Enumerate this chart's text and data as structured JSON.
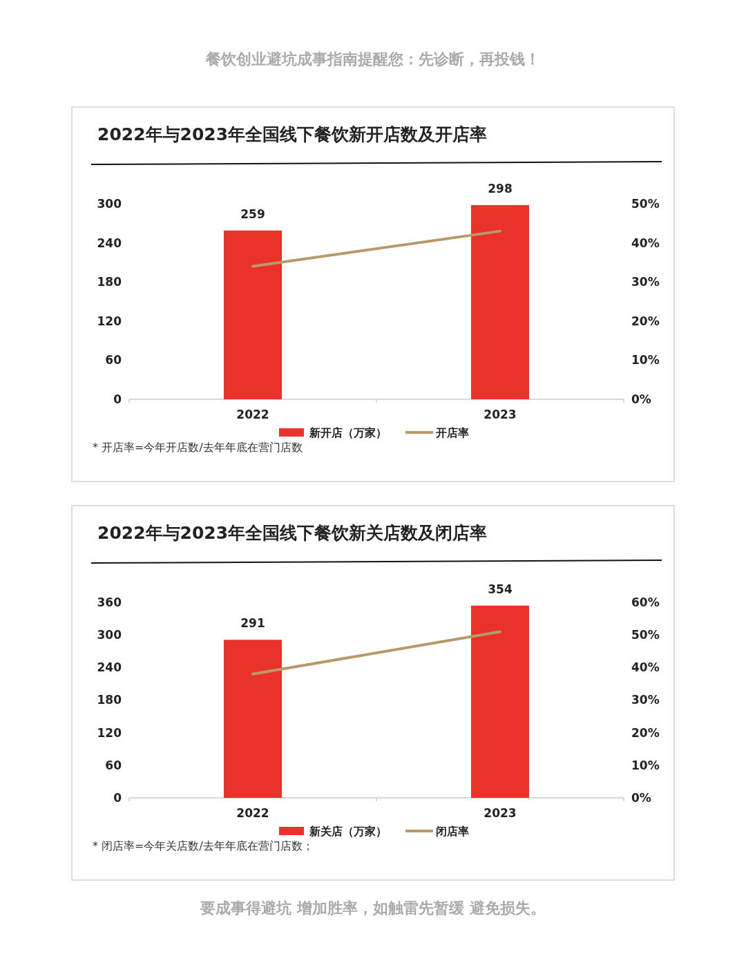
{
  "chart_data": [
    {
      "type": "bar",
      "title": "2022年与2023年全国线下餐饮新开店数及开店率",
      "categories": [
        "2022",
        "2023"
      ],
      "ylim": [
        0,
        300
      ],
      "yticks": [
        0,
        60,
        120,
        180,
        240,
        300
      ],
      "y2lim": [
        0,
        50
      ],
      "y2ticks": [
        {
          "value": 0,
          "label": "0%"
        },
        {
          "value": 10,
          "label": "10%"
        },
        {
          "value": 20,
          "label": "20%"
        },
        {
          "value": 30,
          "label": "30%"
        },
        {
          "value": 40,
          "label": "40%"
        },
        {
          "value": 50,
          "label": "50%"
        }
      ],
      "legend": "bottom",
      "grid": false,
      "series": [
        {
          "name": "新开店（万家）",
          "color": "#e8322a",
          "values": [
            259,
            298
          ],
          "value_labels": [
            "259",
            "298"
          ]
        },
        {
          "name": "开店率",
          "type": "line",
          "axis": "y2",
          "color": "#b8996a",
          "values": [
            34,
            43
          ]
        }
      ],
      "annotations": [
        "餐饮创业避坑成事指南提醒您：先诊断，再投钱！",
        "* 开店率=今年开店数/去年年底在营门店数"
      ]
    },
    {
      "type": "bar",
      "title": "2022年与2023年全国线下餐饮新关店数及闭店率",
      "categories": [
        "2022",
        "2023"
      ],
      "ylim": [
        0,
        360
      ],
      "yticks": [
        0,
        60,
        120,
        180,
        240,
        300,
        360
      ],
      "y2lim": [
        0,
        60
      ],
      "y2ticks": [
        {
          "value": 0,
          "label": "0%"
        },
        {
          "value": 10,
          "label": "10%"
        },
        {
          "value": 20,
          "label": "20%"
        },
        {
          "value": 30,
          "label": "30%"
        },
        {
          "value": 40,
          "label": "40%"
        },
        {
          "value": 50,
          "label": "50%"
        },
        {
          "value": 60,
          "label": "60%"
        }
      ],
      "legend": "bottom",
      "grid": false,
      "series": [
        {
          "name": "新关店（万家）",
          "color": "#e8322a",
          "values": [
            291,
            354
          ],
          "value_labels": [
            "291",
            "354"
          ]
        },
        {
          "name": "闭店率",
          "type": "line",
          "axis": "y2",
          "color": "#b8996a",
          "values": [
            38,
            51
          ]
        }
      ],
      "annotations": [
        "* 闭店率=今年关店数/去年年底在营门店数；",
        "要成事得避坑 增加胜率，如触雷先暂缓 避免损失。"
      ]
    }
  ]
}
